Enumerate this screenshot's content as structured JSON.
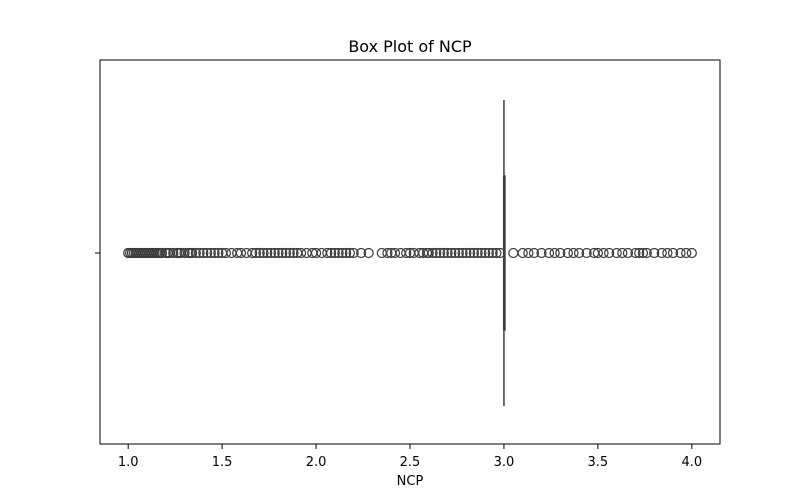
{
  "chart_data": {
    "type": "box",
    "orientation": "horizontal",
    "title": "Box Plot of NCP",
    "xlabel": "NCP",
    "ylabel": "",
    "xlim": [
      0.85,
      4.15
    ],
    "x_ticks": [
      1.0,
      1.5,
      2.0,
      2.5,
      3.0,
      3.5,
      4.0
    ],
    "x_tick_labels": [
      "1.0",
      "1.5",
      "2.0",
      "2.5",
      "3.0",
      "3.5",
      "4.0"
    ],
    "box": {
      "min": 3.0,
      "q1": 3.0,
      "median": 3.0,
      "q3": 3.0,
      "max": 3.0
    },
    "outliers": [
      1.0,
      1.01,
      1.02,
      1.03,
      1.04,
      1.05,
      1.06,
      1.07,
      1.08,
      1.09,
      1.1,
      1.11,
      1.12,
      1.13,
      1.14,
      1.15,
      1.16,
      1.17,
      1.18,
      1.2,
      1.21,
      1.22,
      1.24,
      1.26,
      1.27,
      1.28,
      1.3,
      1.32,
      1.33,
      1.34,
      1.36,
      1.38,
      1.4,
      1.42,
      1.44,
      1.46,
      1.48,
      1.5,
      1.52,
      1.55,
      1.58,
      1.6,
      1.63,
      1.66,
      1.68,
      1.7,
      1.72,
      1.74,
      1.76,
      1.78,
      1.8,
      1.82,
      1.84,
      1.86,
      1.88,
      1.9,
      1.92,
      1.95,
      1.98,
      2.0,
      2.03,
      2.06,
      2.08,
      2.1,
      2.12,
      2.14,
      2.16,
      2.18,
      2.2,
      2.24,
      2.28,
      2.35,
      2.38,
      2.4,
      2.42,
      2.45,
      2.48,
      2.5,
      2.52,
      2.55,
      2.57,
      2.59,
      2.6,
      2.62,
      2.64,
      2.66,
      2.68,
      2.7,
      2.72,
      2.74,
      2.76,
      2.78,
      2.8,
      2.82,
      2.84,
      2.86,
      2.88,
      2.9,
      2.92,
      2.94,
      2.96,
      2.98,
      3.05,
      3.1,
      3.13,
      3.16,
      3.2,
      3.24,
      3.27,
      3.3,
      3.34,
      3.37,
      3.4,
      3.44,
      3.48,
      3.5,
      3.53,
      3.56,
      3.6,
      3.63,
      3.66,
      3.7,
      3.72,
      3.74,
      3.76,
      3.8,
      3.84,
      3.87,
      3.9,
      3.94,
      3.97,
      4.0
    ],
    "grid": false,
    "legend": "none"
  }
}
